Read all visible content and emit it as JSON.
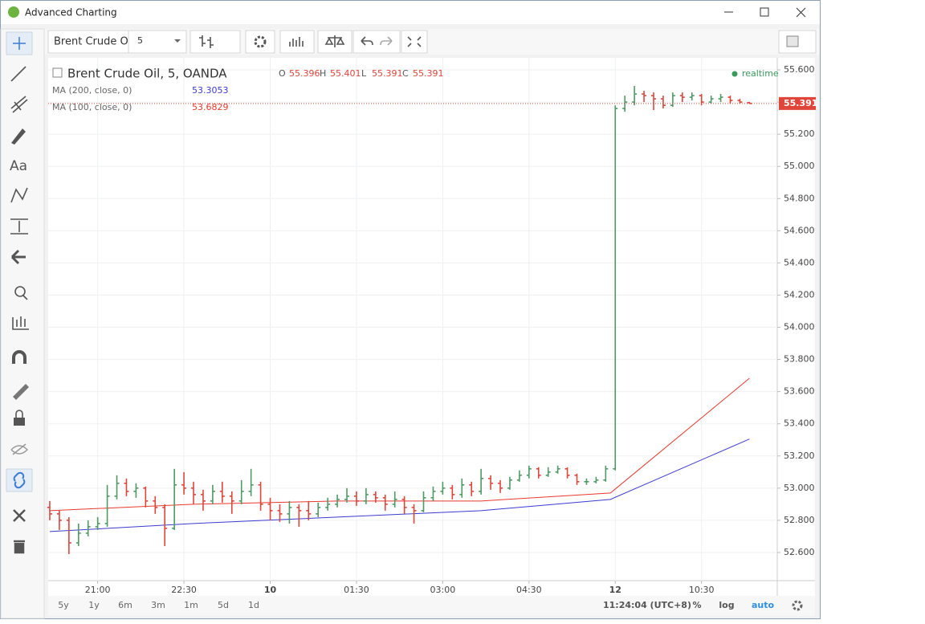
{
  "window": {
    "title": "Advanced Charting"
  },
  "toolbar": {
    "symbol": "Brent Crude Oi",
    "interval": "5"
  },
  "tools": {
    "text_tool": "Aa"
  },
  "chart": {
    "type": "ohlc",
    "legend": "Brent Crude Oil, 5, OANDA",
    "ohlc_labels": [
      "O",
      "H",
      "L",
      "C"
    ],
    "realtime": "realtime",
    "up_color": "#4f9a64",
    "down_color": "#e0453a",
    "xlim": [
      -0.33,
      151.8
    ],
    "xticks": [
      {
        "value": 10,
        "label": "21:00"
      },
      {
        "value": 28,
        "label": "22:30"
      },
      {
        "value": 46,
        "label": "10"
      },
      {
        "value": 64,
        "label": "01:30"
      },
      {
        "value": 82,
        "label": "03:00"
      },
      {
        "value": 100,
        "label": "04:30"
      },
      {
        "value": 118,
        "label": "12"
      },
      {
        "value": 136,
        "label": "10:30"
      }
    ],
    "ylim": [
      52.425,
      55.675
    ],
    "yticks": [
      {
        "value": 52.6,
        "label": "52.600"
      },
      {
        "value": 52.8,
        "label": "52.800"
      },
      {
        "value": 53.0,
        "label": "53.000"
      },
      {
        "value": 53.2,
        "label": "53.200"
      },
      {
        "value": 53.4,
        "label": "53.400"
      },
      {
        "value": 53.6,
        "label": "53.600"
      },
      {
        "value": 53.8,
        "label": "53.800"
      },
      {
        "value": 54.0,
        "label": "54.000"
      },
      {
        "value": 54.2,
        "label": "54.200"
      },
      {
        "value": 54.4,
        "label": "54.400"
      },
      {
        "value": 54.6,
        "label": "54.600"
      },
      {
        "value": 54.8,
        "label": "54.800"
      },
      {
        "value": 55.0,
        "label": "55.000"
      },
      {
        "value": 55.2,
        "label": "55.200"
      },
      {
        "value": 55.4,
        "label": "55.400"
      },
      {
        "value": 55.6,
        "label": "55.600"
      }
    ],
    "grid": true,
    "x": [
      0,
      2,
      4,
      6,
      8,
      10,
      12,
      14,
      16,
      18,
      20,
      22,
      24,
      26,
      28,
      30,
      32,
      34,
      36,
      38,
      40,
      42,
      44,
      46,
      48,
      50,
      52,
      54,
      56,
      58,
      60,
      62,
      64,
      66,
      68,
      70,
      72,
      74,
      76,
      78,
      80,
      82,
      84,
      86,
      88,
      90,
      92,
      94,
      96,
      98,
      100,
      102,
      104,
      106,
      108,
      110,
      112,
      114,
      116,
      118,
      120,
      122,
      124,
      126,
      128,
      130,
      132,
      134,
      136,
      138,
      140,
      142,
      144,
      146
    ],
    "open": [
      52.88,
      52.84,
      52.8,
      52.66,
      52.72,
      52.76,
      52.78,
      52.95,
      53.03,
      52.98,
      53.0,
      52.92,
      52.88,
      52.75,
      53.02,
      53.0,
      52.96,
      52.92,
      52.98,
      52.95,
      52.92,
      52.98,
      53.02,
      52.9,
      52.86,
      52.84,
      52.88,
      52.86,
      52.84,
      52.88,
      52.9,
      52.93,
      52.95,
      52.92,
      52.96,
      52.94,
      52.9,
      52.93,
      52.88,
      52.86,
      52.94,
      52.98,
      53.0,
      52.96,
      53.02,
      52.98,
      53.06,
      53.03,
      53.0,
      53.05,
      53.08,
      53.12,
      53.08,
      53.1,
      53.12,
      53.08,
      53.04,
      53.04,
      53.05,
      53.12,
      55.36,
      55.4,
      55.45,
      55.44,
      55.42,
      55.38,
      55.44,
      55.43,
      55.44,
      55.4,
      55.42,
      55.43,
      55.41,
      55.396
    ],
    "high": [
      52.92,
      52.86,
      52.82,
      52.78,
      52.8,
      52.82,
      53.02,
      53.08,
      53.06,
      53.03,
      53.01,
      52.95,
      52.9,
      53.12,
      53.1,
      53.04,
      52.99,
      53.02,
      53.04,
      52.98,
      53.05,
      53.12,
      53.04,
      52.94,
      52.9,
      52.92,
      52.9,
      52.92,
      52.91,
      52.94,
      52.96,
      53.0,
      52.98,
      53.0,
      52.98,
      52.96,
      52.98,
      52.95,
      52.9,
      52.98,
      53.01,
      53.04,
      53.02,
      53.06,
      53.04,
      53.12,
      53.08,
      53.05,
      53.07,
      53.11,
      53.14,
      53.13,
      53.13,
      53.14,
      53.13,
      53.09,
      53.06,
      53.07,
      53.14,
      55.38,
      55.44,
      55.5,
      55.47,
      55.46,
      55.44,
      55.46,
      55.46,
      55.46,
      55.45,
      55.44,
      55.45,
      55.44,
      55.42,
      55.401
    ],
    "low": [
      52.8,
      52.74,
      52.59,
      52.64,
      52.7,
      52.74,
      52.76,
      52.93,
      52.95,
      52.94,
      52.88,
      52.84,
      52.64,
      52.74,
      52.96,
      52.9,
      52.86,
      52.9,
      52.91,
      52.84,
      52.9,
      52.95,
      52.86,
      52.8,
      52.79,
      52.78,
      52.76,
      52.8,
      52.82,
      52.86,
      52.88,
      52.91,
      52.89,
      52.9,
      52.91,
      52.86,
      52.88,
      52.84,
      52.78,
      52.85,
      52.92,
      52.96,
      52.93,
      52.94,
      52.95,
      52.96,
      52.99,
      52.97,
      52.99,
      53.04,
      53.06,
      53.06,
      53.07,
      53.09,
      53.06,
      53.02,
      53.02,
      53.03,
      53.04,
      53.11,
      55.34,
      55.38,
      55.4,
      55.35,
      55.36,
      55.37,
      55.4,
      55.41,
      55.38,
      55.39,
      55.4,
      55.39,
      55.39,
      55.391
    ],
    "close": [
      52.84,
      52.8,
      52.66,
      52.72,
      52.76,
      52.78,
      52.95,
      53.03,
      52.98,
      53.0,
      52.92,
      52.88,
      52.75,
      53.02,
      53.0,
      52.96,
      52.92,
      52.98,
      52.95,
      52.92,
      52.98,
      53.02,
      52.9,
      52.86,
      52.84,
      52.88,
      52.86,
      52.84,
      52.88,
      52.9,
      52.93,
      52.95,
      52.92,
      52.96,
      52.94,
      52.9,
      52.93,
      52.88,
      52.86,
      52.94,
      52.98,
      53.0,
      52.96,
      53.02,
      52.98,
      53.06,
      53.03,
      53.0,
      53.05,
      53.08,
      53.12,
      53.08,
      53.1,
      53.12,
      53.08,
      53.04,
      53.04,
      53.05,
      53.12,
      55.36,
      55.4,
      55.45,
      55.44,
      55.42,
      55.38,
      55.44,
      55.43,
      55.44,
      55.4,
      55.42,
      55.43,
      55.41,
      55.4,
      55.391
    ],
    "ma": [
      {
        "name": "MA (200, close, 0)",
        "color": "#3b3bd1",
        "x": [
          0,
          30,
          60,
          90,
          117,
          146
        ],
        "values": [
          52.73,
          52.78,
          52.82,
          52.86,
          52.93,
          53.3053
        ]
      },
      {
        "name": "MA (100, close, 0)",
        "color": "#e8392c",
        "x": [
          0,
          30,
          60,
          90,
          117,
          146
        ],
        "values": [
          52.86,
          52.9,
          52.92,
          52.92,
          52.97,
          53.6829
        ]
      }
    ]
  },
  "bottom": {
    "ranges": [
      "5y",
      "1y",
      "6m",
      "3m",
      "1m",
      "5d",
      "1d"
    ],
    "clock": "11:24:04 (UTC+8)",
    "percent": "%",
    "log": "log",
    "auto": "auto"
  }
}
